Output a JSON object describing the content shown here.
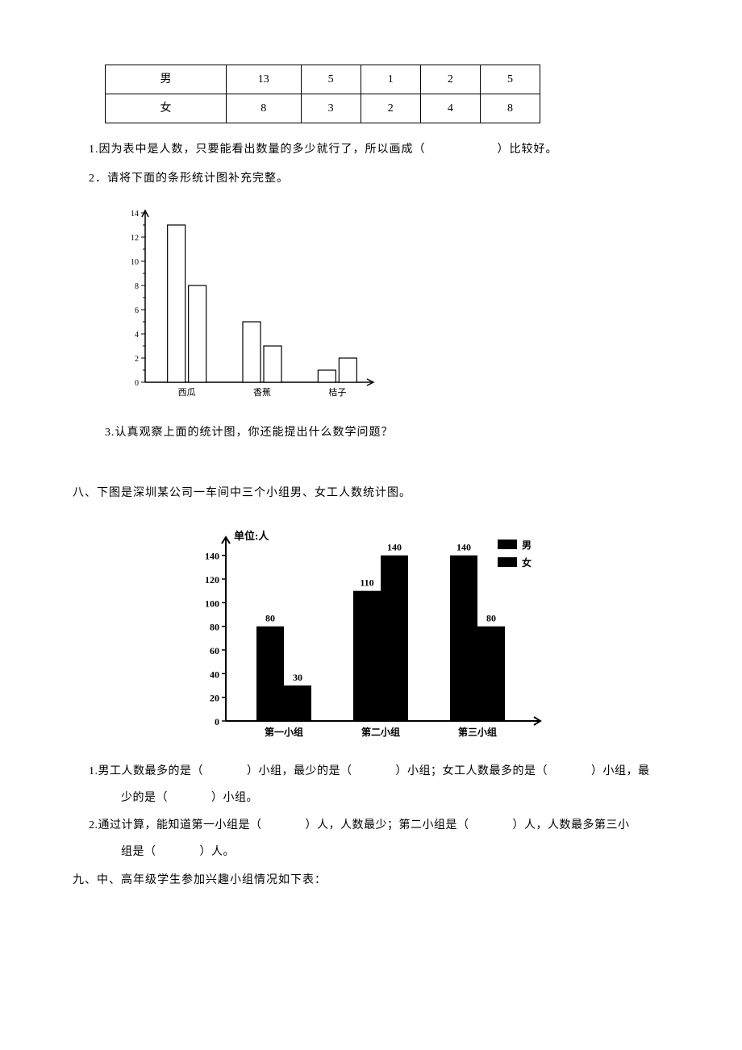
{
  "table1": {
    "rows": [
      {
        "label": "男",
        "cells": [
          "13",
          "5",
          "1",
          "2",
          "5"
        ]
      },
      {
        "label": "女",
        "cells": [
          "8",
          "3",
          "2",
          "4",
          "8"
        ]
      }
    ]
  },
  "q1": {
    "prefix": "1.因为表中是人数，只要能看出数量的多少就行了，所以画成（",
    "suffix": "）比较好。"
  },
  "q2": "2．请将下面的条形统计图补充完整。",
  "chart1": {
    "type": "bar",
    "ylim": [
      0,
      14
    ],
    "ytick_step": 2,
    "yticks": [
      0,
      2,
      4,
      6,
      8,
      10,
      12,
      14
    ],
    "categories": [
      "西瓜",
      "香蕉",
      "桔子"
    ],
    "series": [
      {
        "values": [
          13,
          5,
          1
        ]
      },
      {
        "values": [
          8,
          3,
          2
        ]
      }
    ],
    "bar_fill": "#ffffff",
    "bar_stroke": "#000000",
    "axis_color": "#000000",
    "font_size": 10
  },
  "q3": "3.认真观察上面的统计图，你还能提出什么数学问题？",
  "section8_title": "八、下图是深圳某公司一车间中三个小组男、女工人数统计图。",
  "chart2": {
    "type": "bar",
    "unit_label": "单位:人",
    "ylim": [
      0,
      150
    ],
    "ytick_step": 20,
    "yticks": [
      0,
      20,
      40,
      60,
      80,
      100,
      120,
      140
    ],
    "categories": [
      "第一小组",
      "第二小组",
      "第三小组"
    ],
    "legend": [
      {
        "label": "男",
        "color": "#000000"
      },
      {
        "label": "女",
        "color": "#000000"
      }
    ],
    "series": [
      {
        "name": "男",
        "values": [
          80,
          110,
          140
        ],
        "labels": [
          "80",
          "110",
          "140"
        ],
        "color": "#000000"
      },
      {
        "name": "女",
        "values": [
          30,
          140,
          80
        ],
        "labels": [
          "30",
          "140",
          "80"
        ],
        "color": "#000000"
      }
    ],
    "axis_color": "#000000",
    "font_size": 12,
    "font_weight": "bold"
  },
  "s8q1": {
    "l1_a": "1.男工人数最多的是（",
    "l1_b": "）小组，最少的是（",
    "l1_c": "）小组；女工人数最多的是（",
    "l1_d": "）小组，最",
    "l2_a": "少的是（",
    "l2_b": "）小组。"
  },
  "s8q2": {
    "l1_a": "2.通过计算，能知道第一小组是（",
    "l1_b": "）人，人数最少；第二小组是（",
    "l1_c": "）人，人数最多第三小",
    "l2_a": "组是（",
    "l2_b": "）人。"
  },
  "section9_title": "九、中、高年级学生参加兴趣小组情况如下表："
}
